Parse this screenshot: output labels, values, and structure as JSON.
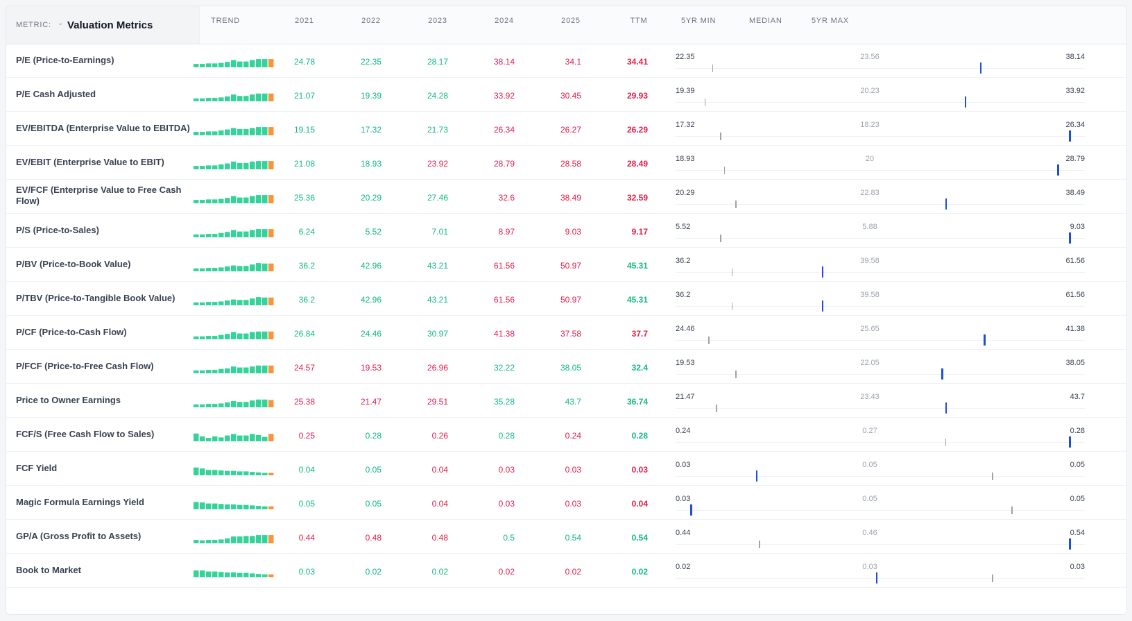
{
  "header": {
    "metric_label": "METRIC:",
    "metric_name": "Valuation Metrics",
    "columns": [
      "TREND",
      "2021",
      "2022",
      "2023",
      "2024",
      "2025",
      "TTM",
      "5YR MIN",
      "MEDIAN",
      "5YR MAX"
    ]
  },
  "colors": {
    "good": "#10b981",
    "bad": "#e11d48",
    "spark": "#34d399",
    "spark_current": "#fb923c",
    "marker": "#1d4ed8"
  },
  "rows": [
    {
      "name": "P/E (Price-to-Earnings)",
      "values": [
        "24.78",
        "22.35",
        "28.17",
        "38.14",
        "34.1",
        "34.41"
      ],
      "good": [
        1,
        1,
        1,
        0,
        0,
        0
      ],
      "min": "22.35",
      "median": "23.56",
      "max": "38.14",
      "median_frac": 0.08,
      "current_frac": 0.77,
      "trend": [
        0.35,
        0.35,
        0.4,
        0.4,
        0.45,
        0.55,
        0.75,
        0.6,
        0.6,
        0.75,
        0.85,
        0.85,
        0.85
      ]
    },
    {
      "name": "P/E Cash Adjusted",
      "values": [
        "21.07",
        "19.39",
        "24.28",
        "33.92",
        "30.45",
        "29.93"
      ],
      "good": [
        1,
        1,
        1,
        0,
        0,
        0
      ],
      "min": "19.39",
      "median": "20.23",
      "max": "33.92",
      "median_frac": 0.06,
      "current_frac": 0.73,
      "trend": [
        0.3,
        0.3,
        0.35,
        0.35,
        0.4,
        0.5,
        0.7,
        0.55,
        0.55,
        0.7,
        0.8,
        0.8,
        0.8
      ]
    },
    {
      "name": "EV/EBITDA (Enterprise Value to EBITDA)",
      "values": [
        "19.15",
        "17.32",
        "21.73",
        "26.34",
        "26.27",
        "26.29"
      ],
      "good": [
        1,
        1,
        1,
        0,
        0,
        0
      ],
      "min": "17.32",
      "median": "18.23",
      "max": "26.34",
      "median_frac": 0.1,
      "current_frac": 1.0,
      "trend": [
        0.35,
        0.35,
        0.4,
        0.4,
        0.5,
        0.6,
        0.75,
        0.65,
        0.65,
        0.75,
        0.85,
        0.85,
        0.85
      ]
    },
    {
      "name": "EV/EBIT (Enterprise Value to EBIT)",
      "values": [
        "21.08",
        "18.93",
        "23.92",
        "28.79",
        "28.58",
        "28.49"
      ],
      "good": [
        1,
        1,
        0,
        0,
        0,
        0
      ],
      "min": "18.93",
      "median": "20",
      "max": "28.79",
      "median_frac": 0.11,
      "current_frac": 0.97,
      "trend": [
        0.35,
        0.35,
        0.4,
        0.4,
        0.5,
        0.6,
        0.8,
        0.65,
        0.65,
        0.8,
        0.85,
        0.85,
        0.85
      ]
    },
    {
      "name": "EV/FCF (Enterprise Value to Free Cash Flow)",
      "values": [
        "25.36",
        "20.29",
        "27.46",
        "32.6",
        "38.49",
        "32.59"
      ],
      "good": [
        1,
        1,
        1,
        0,
        0,
        0
      ],
      "min": "20.29",
      "median": "22.83",
      "max": "38.49",
      "median_frac": 0.14,
      "current_frac": 0.68,
      "trend": [
        0.35,
        0.35,
        0.4,
        0.4,
        0.45,
        0.55,
        0.75,
        0.6,
        0.6,
        0.75,
        0.85,
        0.85,
        0.85
      ]
    },
    {
      "name": "P/S (Price-to-Sales)",
      "values": [
        "6.24",
        "5.52",
        "7.01",
        "8.97",
        "9.03",
        "9.17"
      ],
      "good": [
        1,
        1,
        1,
        0,
        0,
        0
      ],
      "min": "5.52",
      "median": "5.88",
      "max": "9.03",
      "median_frac": 0.1,
      "current_frac": 1.0,
      "trend": [
        0.3,
        0.3,
        0.35,
        0.35,
        0.45,
        0.55,
        0.75,
        0.6,
        0.6,
        0.75,
        0.85,
        0.85,
        0.85
      ]
    },
    {
      "name": "P/BV (Price-to-Book Value)",
      "values": [
        "36.2",
        "42.96",
        "43.21",
        "61.56",
        "50.97",
        "45.31"
      ],
      "good": [
        1,
        1,
        1,
        0,
        0,
        1
      ],
      "min": "36.2",
      "median": "39.58",
      "max": "61.56",
      "median_frac": 0.13,
      "current_frac": 0.36,
      "trend": [
        0.3,
        0.3,
        0.35,
        0.35,
        0.4,
        0.5,
        0.6,
        0.55,
        0.55,
        0.7,
        0.85,
        0.8,
        0.8
      ]
    },
    {
      "name": "P/TBV (Price-to-Tangible Book Value)",
      "values": [
        "36.2",
        "42.96",
        "43.21",
        "61.56",
        "50.97",
        "45.31"
      ],
      "good": [
        1,
        1,
        1,
        0,
        0,
        1
      ],
      "min": "36.2",
      "median": "39.58",
      "max": "61.56",
      "median_frac": 0.13,
      "current_frac": 0.36,
      "trend": [
        0.3,
        0.3,
        0.35,
        0.35,
        0.4,
        0.5,
        0.6,
        0.55,
        0.55,
        0.7,
        0.85,
        0.8,
        0.8
      ]
    },
    {
      "name": "P/CF (Price-to-Cash Flow)",
      "values": [
        "26.84",
        "24.46",
        "30.97",
        "41.38",
        "37.58",
        "37.7"
      ],
      "good": [
        1,
        1,
        1,
        0,
        0,
        0
      ],
      "min": "24.46",
      "median": "25.65",
      "max": "41.38",
      "median_frac": 0.07,
      "current_frac": 0.78,
      "trend": [
        0.3,
        0.3,
        0.35,
        0.35,
        0.45,
        0.55,
        0.75,
        0.6,
        0.6,
        0.75,
        0.8,
        0.8,
        0.8
      ]
    },
    {
      "name": "P/FCF (Price-to-Free Cash Flow)",
      "values": [
        "24.57",
        "19.53",
        "26.96",
        "32.22",
        "38.05",
        "32.4"
      ],
      "good": [
        0,
        0,
        0,
        1,
        1,
        1
      ],
      "min": "19.53",
      "median": "22.05",
      "max": "38.05",
      "median_frac": 0.14,
      "current_frac": 0.67,
      "trend": [
        0.3,
        0.3,
        0.35,
        0.35,
        0.45,
        0.5,
        0.7,
        0.6,
        0.6,
        0.7,
        0.8,
        0.8,
        0.8
      ]
    },
    {
      "name": "Price to Owner Earnings",
      "values": [
        "25.38",
        "21.47",
        "29.51",
        "35.28",
        "43.7",
        "36.74"
      ],
      "good": [
        0,
        0,
        0,
        1,
        1,
        1
      ],
      "min": "21.47",
      "median": "23.43",
      "max": "43.7",
      "median_frac": 0.09,
      "current_frac": 0.68,
      "trend": [
        0.3,
        0.3,
        0.35,
        0.35,
        0.4,
        0.5,
        0.65,
        0.55,
        0.55,
        0.7,
        0.8,
        0.8,
        0.75
      ]
    },
    {
      "name": "FCF/S (Free Cash Flow to Sales)",
      "values": [
        "0.25",
        "0.28",
        "0.26",
        "0.28",
        "0.24",
        "0.28"
      ],
      "good": [
        0,
        1,
        0,
        1,
        0,
        1
      ],
      "min": "0.24",
      "median": "0.27",
      "max": "0.28",
      "median_frac": 0.68,
      "current_frac": 1.0,
      "trend": [
        0.8,
        0.5,
        0.35,
        0.5,
        0.4,
        0.6,
        0.75,
        0.6,
        0.6,
        0.75,
        0.65,
        0.45,
        0.75
      ]
    },
    {
      "name": "FCF Yield",
      "values": [
        "0.04",
        "0.05",
        "0.04",
        "0.03",
        "0.03",
        "0.03"
      ],
      "good": [
        1,
        1,
        0,
        0,
        0,
        0
      ],
      "min": "0.03",
      "median": "0.05",
      "max": "0.05",
      "median_frac": 0.8,
      "current_frac": 0.19,
      "trend": [
        0.8,
        0.7,
        0.55,
        0.55,
        0.5,
        0.45,
        0.45,
        0.4,
        0.4,
        0.35,
        0.3,
        0.25,
        0.25
      ]
    },
    {
      "name": "Magic Formula Earnings Yield",
      "values": [
        "0.05",
        "0.05",
        "0.04",
        "0.03",
        "0.03",
        "0.04"
      ],
      "good": [
        1,
        1,
        0,
        0,
        0,
        0
      ],
      "min": "0.03",
      "median": "0.05",
      "max": "0.05",
      "median_frac": 0.85,
      "current_frac": 0.02,
      "trend": [
        0.75,
        0.7,
        0.6,
        0.6,
        0.55,
        0.5,
        0.5,
        0.45,
        0.45,
        0.4,
        0.35,
        0.3,
        0.3
      ]
    },
    {
      "name": "GP/A (Gross Profit to Assets)",
      "values": [
        "0.44",
        "0.48",
        "0.48",
        "0.5",
        "0.54",
        "0.54"
      ],
      "good": [
        0,
        0,
        0,
        1,
        1,
        1
      ],
      "min": "0.44",
      "median": "0.46",
      "max": "0.54",
      "median_frac": 0.2,
      "current_frac": 1.0,
      "trend": [
        0.35,
        0.3,
        0.35,
        0.35,
        0.4,
        0.5,
        0.7,
        0.7,
        0.75,
        0.75,
        0.85,
        0.85,
        0.85
      ]
    },
    {
      "name": "Book to Market",
      "values": [
        "0.03",
        "0.02",
        "0.02",
        "0.02",
        "0.02",
        "0.02"
      ],
      "good": [
        1,
        1,
        1,
        0,
        0,
        1
      ],
      "min": "0.02",
      "median": "0.03",
      "max": "0.03",
      "median_frac": 0.8,
      "current_frac": 0.5,
      "trend": [
        0.7,
        0.7,
        0.6,
        0.6,
        0.55,
        0.5,
        0.5,
        0.45,
        0.45,
        0.4,
        0.35,
        0.3,
        0.3
      ]
    }
  ]
}
